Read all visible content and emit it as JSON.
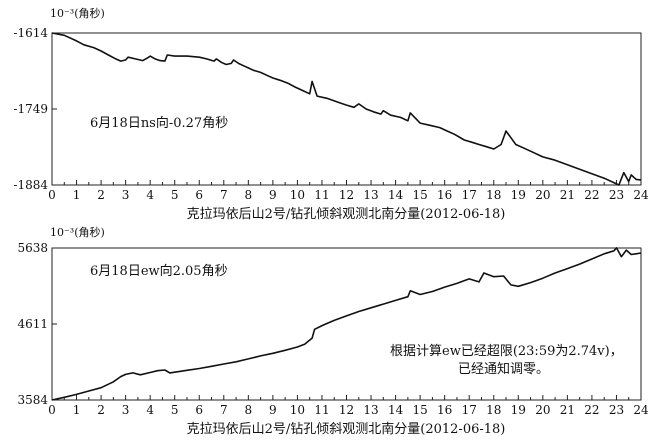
{
  "chart_data": [
    {
      "type": "line",
      "unit_label": "10⁻³(角秒)",
      "xlabel": "克拉玛依后山2号/钻孔倾斜观测北南分量(2012-06-18)",
      "annotation": "6月18日ns向-0.27角秒",
      "ylim": [
        -1884,
        -1614
      ],
      "yticks": [
        "-1614",
        "-1749",
        "-1884"
      ],
      "ytick_values": [
        -1614,
        -1749,
        -1884
      ],
      "xlim": [
        0,
        24
      ],
      "xticks": [
        "0",
        "1",
        "2",
        "3",
        "4",
        "5",
        "6",
        "7",
        "8",
        "9",
        "10",
        "11",
        "12",
        "13",
        "14",
        "15",
        "16",
        "17",
        "18",
        "19",
        "20",
        "21",
        "22",
        "23",
        "24"
      ],
      "series": [
        {
          "name": "ns",
          "x": [
            0,
            0.5,
            1,
            1.3,
            1.7,
            2,
            2.3,
            2.6,
            2.8,
            3.0,
            3.1,
            3.4,
            3.7,
            3.9,
            4.0,
            4.2,
            4.4,
            4.6,
            4.7,
            5.0,
            5.5,
            6.0,
            6.3,
            6.6,
            6.7,
            6.9,
            7.1,
            7.3,
            7.4,
            7.6,
            7.8,
            8.0,
            8.2,
            8.5,
            8.8,
            9.0,
            9.3,
            9.6,
            9.9,
            10.2,
            10.5,
            10.6,
            10.8,
            11.2,
            11.6,
            12.0,
            12.3,
            12.5,
            12.8,
            13.1,
            13.4,
            13.5,
            13.8,
            14.2,
            14.5,
            14.6,
            15.0,
            15.4,
            15.8,
            16.1,
            16.4,
            16.8,
            17.1,
            17.4,
            17.7,
            18.0,
            18.3,
            18.5,
            18.7,
            18.9,
            19.2,
            19.6,
            20.0,
            20.5,
            21.0,
            21.5,
            22.0,
            22.5,
            23.0,
            23.1,
            23.3,
            23.5,
            23.6,
            23.8,
            24.0
          ],
          "values": [
            -1614,
            -1618,
            -1628,
            -1635,
            -1640,
            -1646,
            -1653,
            -1660,
            -1664,
            -1662,
            -1657,
            -1660,
            -1663,
            -1658,
            -1655,
            -1660,
            -1663,
            -1664,
            -1653,
            -1655,
            -1655,
            -1657,
            -1660,
            -1664,
            -1660,
            -1666,
            -1670,
            -1668,
            -1662,
            -1668,
            -1672,
            -1676,
            -1680,
            -1684,
            -1690,
            -1694,
            -1698,
            -1703,
            -1710,
            -1716,
            -1722,
            -1700,
            -1726,
            -1730,
            -1736,
            -1742,
            -1746,
            -1740,
            -1749,
            -1754,
            -1758,
            -1752,
            -1760,
            -1764,
            -1770,
            -1756,
            -1774,
            -1778,
            -1782,
            -1788,
            -1794,
            -1804,
            -1808,
            -1812,
            -1816,
            -1820,
            -1812,
            -1788,
            -1800,
            -1812,
            -1818,
            -1826,
            -1834,
            -1840,
            -1848,
            -1856,
            -1864,
            -1872,
            -1882,
            -1884,
            -1862,
            -1878,
            -1866,
            -1874,
            -1875
          ]
        }
      ]
    },
    {
      "type": "line",
      "unit_label": "10⁻³(角秒)",
      "xlabel": "克拉玛依后山2号/钻孔倾斜观测北南分量(2012-06-18)",
      "annotation": "6月18日ew向2.05角秒",
      "annotation2_line1": "根据计算ew已经超限(23:59为2.74v)，",
      "annotation2_line2": "已经通知调零。",
      "ylim": [
        3584,
        5638
      ],
      "yticks": [
        "5638",
        "4611",
        "3584"
      ],
      "ytick_values": [
        5638,
        4611,
        3584
      ],
      "xlim": [
        0,
        24
      ],
      "xticks": [
        "0",
        "1",
        "2",
        "3",
        "4",
        "5",
        "6",
        "7",
        "8",
        "9",
        "10",
        "11",
        "12",
        "13",
        "14",
        "15",
        "16",
        "17",
        "18",
        "19",
        "20",
        "21",
        "22",
        "23",
        "24"
      ],
      "series": [
        {
          "name": "ew",
          "x": [
            0,
            0.5,
            1,
            1.5,
            2,
            2.5,
            2.8,
            3.0,
            3.3,
            3.6,
            4.0,
            4.3,
            4.6,
            4.8,
            5.0,
            5.5,
            6.0,
            6.5,
            7.0,
            7.5,
            8.0,
            8.5,
            9.0,
            9.5,
            10.0,
            10.3,
            10.6,
            10.7,
            11.0,
            11.5,
            12.0,
            12.5,
            13.0,
            13.5,
            14.0,
            14.5,
            14.6,
            15.0,
            15.5,
            16.0,
            16.5,
            17.0,
            17.4,
            17.6,
            18.0,
            18.4,
            18.7,
            19.0,
            19.5,
            20.0,
            20.5,
            21.0,
            21.5,
            22.0,
            22.5,
            22.9,
            23.0,
            23.2,
            23.4,
            23.6,
            23.8,
            24.0
          ],
          "values": [
            3584,
            3620,
            3660,
            3705,
            3750,
            3830,
            3900,
            3930,
            3950,
            3925,
            3955,
            3980,
            3990,
            3950,
            3960,
            3985,
            4010,
            4040,
            4070,
            4100,
            4140,
            4180,
            4215,
            4255,
            4300,
            4340,
            4420,
            4540,
            4590,
            4660,
            4720,
            4780,
            4830,
            4880,
            4930,
            4980,
            5060,
            5010,
            5050,
            5110,
            5160,
            5220,
            5180,
            5300,
            5250,
            5260,
            5140,
            5120,
            5170,
            5230,
            5300,
            5360,
            5420,
            5490,
            5560,
            5600,
            5640,
            5520,
            5610,
            5550,
            5560,
            5570
          ]
        }
      ]
    }
  ]
}
